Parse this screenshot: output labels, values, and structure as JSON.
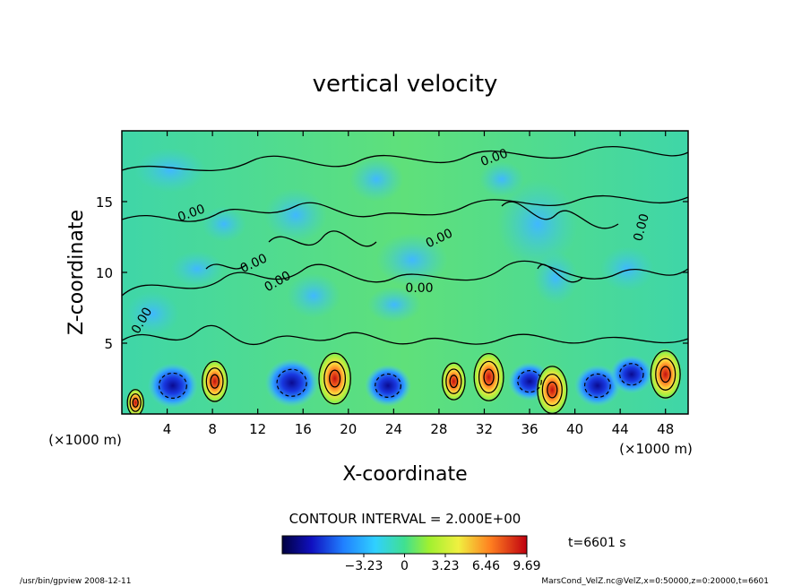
{
  "chart_data": {
    "type": "heatmap",
    "title": "vertical velocity",
    "xlabel": "X-coordinate",
    "ylabel": "Z-coordinate",
    "x_unit": "(×1000 m)",
    "z_unit": "(×1000 m)",
    "xlim": [
      0,
      50
    ],
    "ylim": [
      0,
      20
    ],
    "x_ticks": [
      4,
      8,
      12,
      16,
      20,
      24,
      28,
      32,
      36,
      40,
      44,
      48
    ],
    "y_ticks": [
      5,
      10,
      15
    ],
    "contour_interval": "CONTOUR INTERVAL = 2.000E+00",
    "contour_labels": [
      "0.00",
      "0.00",
      "0.00",
      "0.00",
      "0.00",
      "0.00",
      "0.00",
      "0.00"
    ],
    "colorbar": {
      "range": [
        -9.69,
        9.69
      ],
      "tick_labels": [
        "−3.23",
        "0",
        "3.23",
        "6.46",
        "9.69"
      ],
      "tick_values": [
        -3.23,
        0,
        3.23,
        6.46,
        9.69
      ]
    },
    "time_label": "t=6601 s",
    "updrafts": [
      {
        "x": 1.2,
        "z": 0.8,
        "w": 3
      },
      {
        "x": 8.2,
        "z": 2.3,
        "w": 7
      },
      {
        "x": 18.8,
        "z": 2.5,
        "w": 10
      },
      {
        "x": 29.3,
        "z": 2.3,
        "w": 6
      },
      {
        "x": 32.4,
        "z": 2.6,
        "w": 9
      },
      {
        "x": 38.0,
        "z": 1.7,
        "w": 9
      },
      {
        "x": 48.0,
        "z": 2.8,
        "w": 9
      }
    ],
    "downdrafts": [
      {
        "x": 4.5,
        "z": 2.0,
        "w": -7
      },
      {
        "x": 15.0,
        "z": 2.2,
        "w": -8
      },
      {
        "x": 23.5,
        "z": 2.0,
        "w": -6
      },
      {
        "x": 36.0,
        "z": 2.3,
        "w": -5
      },
      {
        "x": 42.0,
        "z": 2.0,
        "w": -6
      },
      {
        "x": 45.0,
        "z": 2.8,
        "w": -5
      }
    ]
  },
  "footer": {
    "left": "/usr/bin/gpview   2008-12-11",
    "right": "MarsCond_VelZ.nc@VelZ,x=0:50000,z=0:20000,t=6601"
  }
}
